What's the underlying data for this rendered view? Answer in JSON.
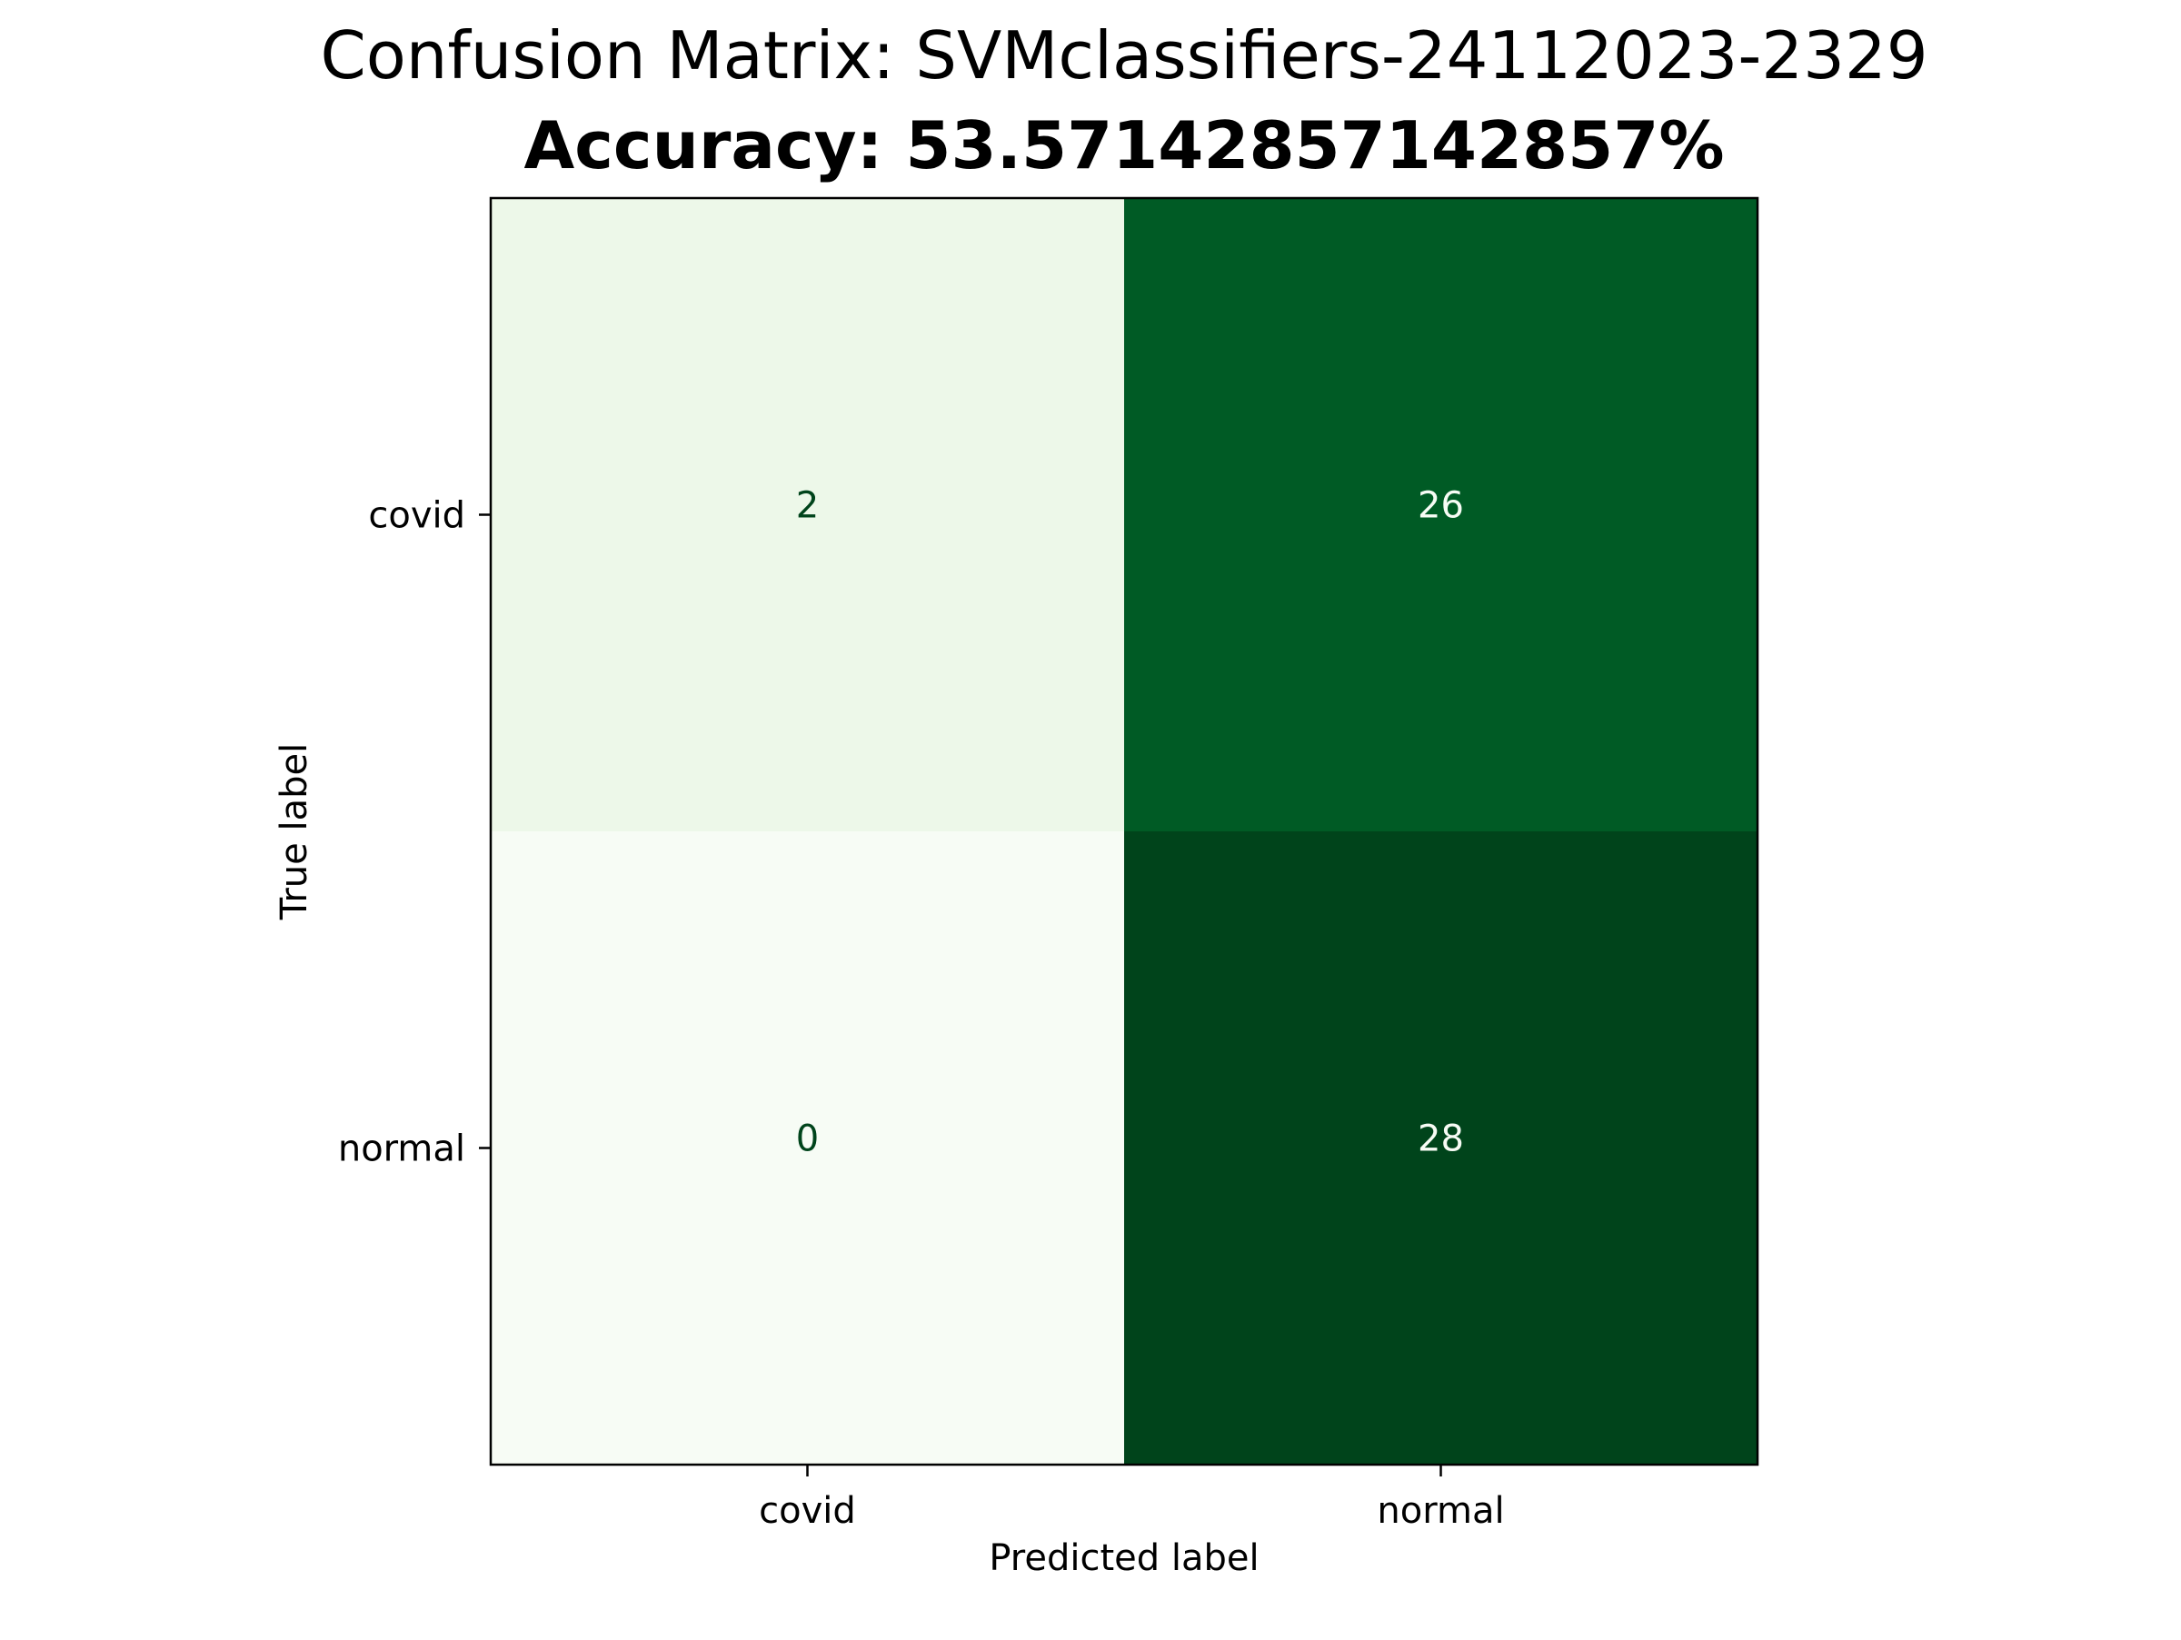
{
  "chart_data": {
    "type": "heatmap",
    "title": "Confusion Matrix: SVMclassifiers-24112023-2329",
    "subtitle": "Accuracy: 53.57142857142857%",
    "xlabel": "Predicted label",
    "ylabel": "True label",
    "x_categories": [
      "covid",
      "normal"
    ],
    "y_categories": [
      "covid",
      "normal"
    ],
    "values": [
      [
        2,
        26
      ],
      [
        0,
        28
      ]
    ],
    "colormap": "Greens",
    "color_range": [
      0,
      28
    ],
    "colorbar": false,
    "grid": false
  }
}
